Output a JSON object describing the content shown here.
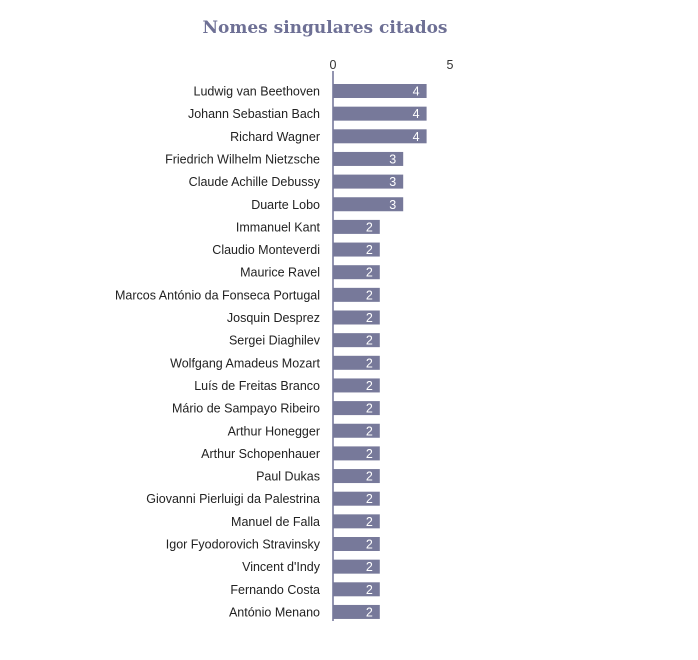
{
  "colors": {
    "bar": "#77799a",
    "title": "#6e7095",
    "axis": "#6e7095",
    "data_label": "#ffffff"
  },
  "chart_data": {
    "type": "bar",
    "orientation": "horizontal",
    "title": "Nomes singulares citados",
    "xlabel": "",
    "ylabel": "",
    "xlim": [
      0,
      5
    ],
    "x_ticks": [
      "0",
      "5"
    ],
    "grid": false,
    "legend": "none",
    "categories": [
      "Ludwig van Beethoven",
      "Johann Sebastian Bach",
      "Richard Wagner",
      "Friedrich Wilhelm Nietzsche",
      "Claude Achille Debussy",
      "Duarte Lobo",
      "Immanuel Kant",
      "Claudio Monteverdi",
      "Maurice Ravel",
      "Marcos António da Fonseca Portugal",
      "Josquin Desprez",
      "Sergei Diaghilev",
      "Wolfgang Amadeus Mozart",
      "Luís de Freitas Branco",
      "Mário de Sampayo Ribeiro",
      "Arthur Honegger",
      "Arthur Schopenhauer",
      "Paul Dukas",
      "Giovanni Pierluigi da Palestrina",
      "Manuel de Falla",
      "Igor Fyodorovich Stravinsky",
      "Vincent d'Indy",
      "Fernando Costa",
      "António Menano"
    ],
    "values": [
      4,
      4,
      4,
      3,
      3,
      3,
      2,
      2,
      2,
      2,
      2,
      2,
      2,
      2,
      2,
      2,
      2,
      2,
      2,
      2,
      2,
      2,
      2,
      2
    ],
    "data_labels": [
      "4",
      "4",
      "4",
      "3",
      "3",
      "3",
      "2",
      "2",
      "2",
      "2",
      "2",
      "2",
      "2",
      "2",
      "2",
      "2",
      "2",
      "2",
      "2",
      "2",
      "2",
      "2",
      "2",
      "2"
    ]
  }
}
